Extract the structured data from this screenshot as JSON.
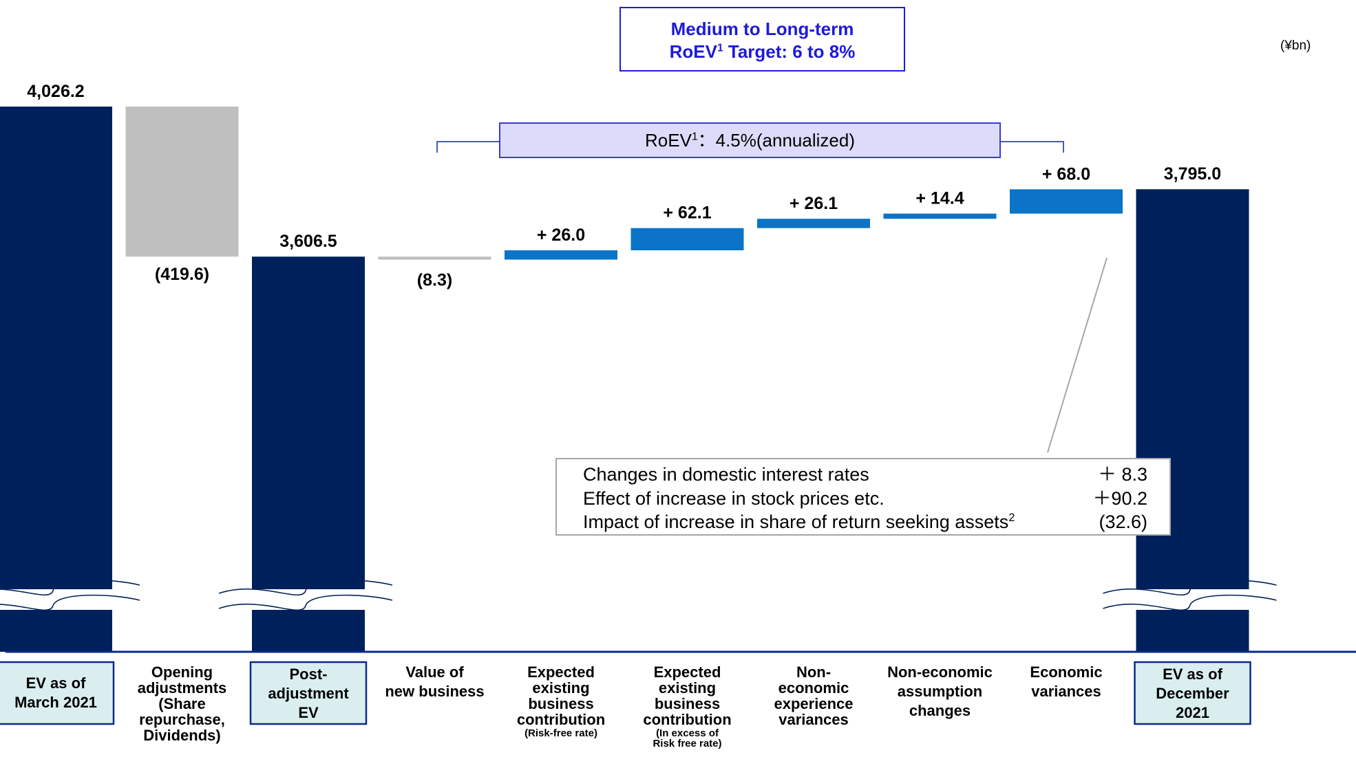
{
  "unit": "(¥bn)",
  "target_box": {
    "line1": "Medium to Long-term",
    "line2_prefix": "RoEV",
    "line2_sup": "1",
    "line2_suffix": " Target: 6 to 8%"
  },
  "roev_box": {
    "prefix": "RoEV",
    "sup": "1",
    "suffix": "：4.5%(annualized)"
  },
  "colors": {
    "dark_bar": "#00205c",
    "step_bar": "#0b74c8",
    "neg_bar": "#bfbfbf",
    "label_box_fill": "#daeef0",
    "label_box_border": "#0a2a8c",
    "axis": "#0a2a8c",
    "accent_text": "#1d1ad8"
  },
  "economic_breakdown": [
    {
      "label": "Changes in domestic interest rates",
      "sup": "",
      "value": "＋ 8.3"
    },
    {
      "label": "Effect of increase in stock prices etc.",
      "sup": "",
      "value": "＋90.2"
    },
    {
      "label": "Impact of increase in share of return seeking assets",
      "sup": "2",
      "value": "(32.6)"
    }
  ],
  "chart_data": {
    "type": "bar",
    "subtype": "waterfall",
    "axis_break": true,
    "categories": [
      {
        "lines": [
          "EV as of",
          "March 2021"
        ],
        "boxed": true
      },
      {
        "lines": [
          "Opening",
          "adjustments",
          "(Share",
          "repurchase,",
          "Dividends)"
        ],
        "boxed": false
      },
      {
        "lines": [
          "Post-",
          "adjustment",
          "EV"
        ],
        "boxed": true
      },
      {
        "lines": [
          "Value of",
          "new business"
        ],
        "boxed": false
      },
      {
        "lines": [
          "Expected",
          "existing",
          "business",
          "contribution"
        ],
        "small": [
          "(Risk-free rate)"
        ],
        "boxed": false
      },
      {
        "lines": [
          "Expected",
          "existing",
          "business",
          "contribution"
        ],
        "small": [
          "(In excess of",
          "Risk free rate)"
        ],
        "boxed": false
      },
      {
        "lines": [
          "Non-",
          "economic",
          "experience",
          "variances"
        ],
        "boxed": false
      },
      {
        "lines": [
          "Non-economic",
          "assumption",
          "changes"
        ],
        "boxed": false
      },
      {
        "lines": [
          "Economic",
          "variances"
        ],
        "boxed": false
      },
      {
        "lines": [
          "EV as of",
          "December",
          "2021"
        ],
        "boxed": true
      }
    ],
    "values": [
      4026.2,
      -419.6,
      3606.5,
      -8.3,
      26.0,
      62.1,
      26.1,
      14.4,
      68.0,
      3795.0
    ],
    "kinds": [
      "total",
      "delta",
      "total",
      "delta",
      "delta",
      "delta",
      "delta",
      "delta",
      "delta",
      "total"
    ],
    "value_labels": [
      "4,026.2",
      "(419.6)",
      "3,606.5",
      "(8.3)",
      "+ 26.0",
      "+ 62.1",
      "+ 26.1",
      "+ 14.4",
      "+ 68.0",
      "3,795.0"
    ]
  }
}
